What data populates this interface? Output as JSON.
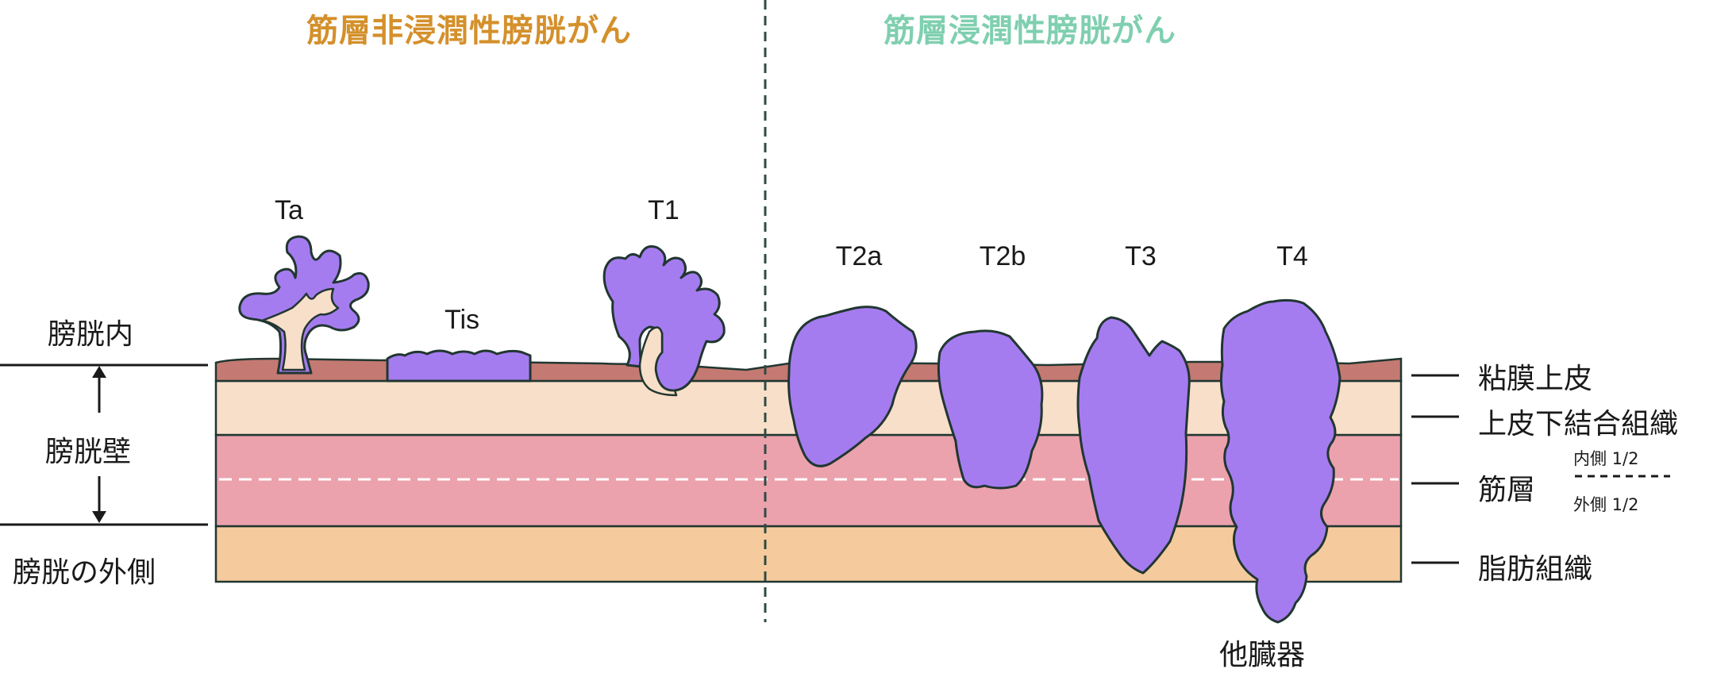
{
  "headers": {
    "non_invasive": "筋層非浸潤性膀胱がん",
    "invasive": "筋層浸潤性膀胱がん"
  },
  "left_labels": {
    "lumen": "膀胱内",
    "wall": "膀胱壁",
    "outside": "膀胱の外側"
  },
  "stages": [
    "Ta",
    "Tis",
    "T1",
    "T2a",
    "T2b",
    "T3",
    "T4"
  ],
  "layers": {
    "mucosa": "粘膜上皮",
    "lamina_propria": "上皮下結合組織",
    "muscle": "筋層",
    "muscle_inner": "内側 1/2",
    "muscle_outer": "外側 1/2",
    "fat": "脂肪組織"
  },
  "other_organs": "他臓器",
  "colors": {
    "header_non_invasive": "#d4902b",
    "header_invasive": "#7fcfb0",
    "mucosa": "#c47a72",
    "lamina_propria": "#f8dfc9",
    "muscle": "#eba2ad",
    "fat": "#f5cb9d",
    "tumor": "#a57cf0",
    "outline": "#213631"
  }
}
